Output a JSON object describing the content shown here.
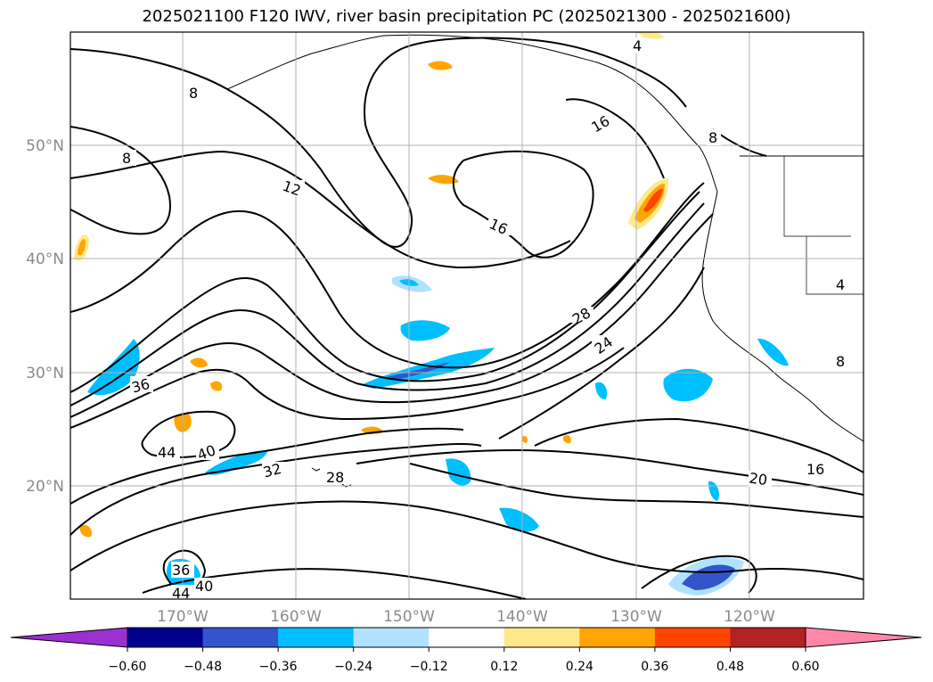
{
  "title": "2025021100 F120 IWV, river basin precipitation PC (2025021300 - 2025021600)",
  "map": {
    "lat_ticks": [
      "50°N",
      "40°N",
      "30°N",
      "20°N"
    ],
    "lon_ticks": [
      "170°W",
      "160°W",
      "150°W",
      "140°W",
      "130°W",
      "120°W"
    ],
    "contour_labels": [
      "8",
      "8",
      "12",
      "16",
      "16",
      "28",
      "24",
      "36",
      "44",
      "40",
      "32",
      "28",
      "20",
      "16",
      "36",
      "40",
      "44",
      "4",
      "4",
      "8",
      "8"
    ]
  },
  "colorbar": {
    "ticks": [
      "−0.60",
      "−0.48",
      "−0.36",
      "−0.24",
      "−0.12",
      "0.12",
      "0.24",
      "0.36",
      "0.48",
      "0.60"
    ],
    "colors": [
      "#9b30d0",
      "#00008b",
      "#3355cc",
      "#00bfff",
      "#b0e2ff",
      "#ffffff",
      "#ffe88a",
      "#ffa500",
      "#ff4500",
      "#b22222",
      "#ff88aa",
      "#ff88aa"
    ]
  },
  "colors": {
    "neg_1": "#00bfff",
    "neg_2": "#3355cc",
    "neg_3": "#00008b",
    "neg_light": "#b0e2ff",
    "pos_1": "#ffe88a",
    "pos_2": "#ffa500",
    "pos_3": "#ff4500"
  }
}
